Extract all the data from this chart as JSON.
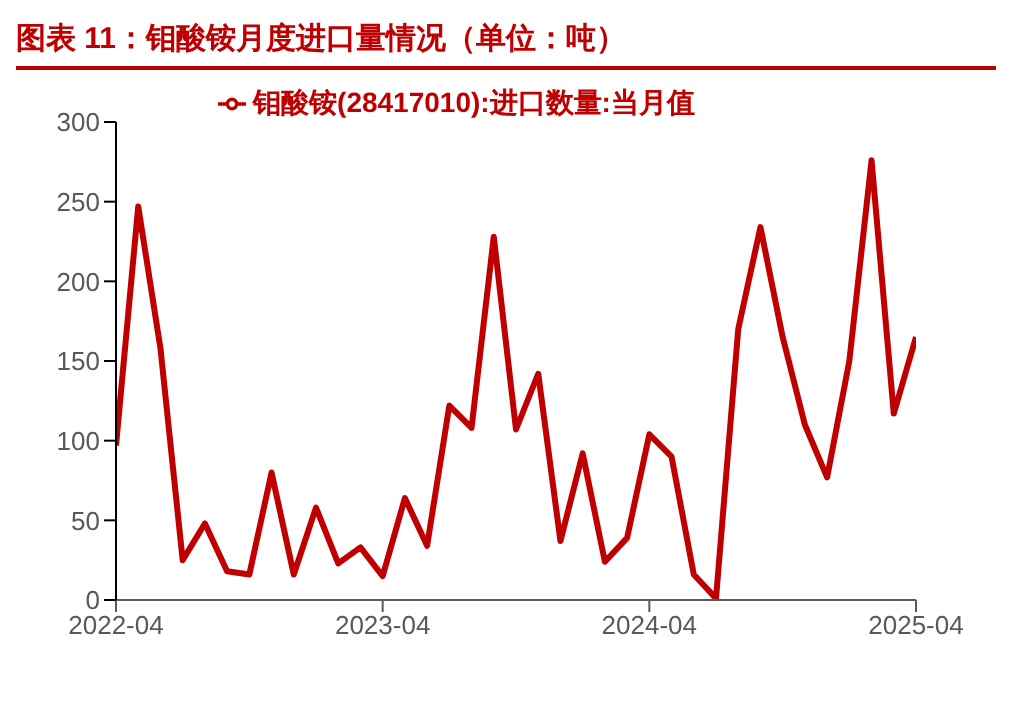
{
  "chart_data": {
    "type": "line",
    "title": "图表 11：钼酸铵月度进口量情况（单位：吨）",
    "x": [
      "2022-04",
      "2022-05",
      "2022-06",
      "2022-07",
      "2022-08",
      "2022-09",
      "2022-10",
      "2022-11",
      "2022-12",
      "2023-01",
      "2023-02",
      "2023-03",
      "2023-04",
      "2023-05",
      "2023-06",
      "2023-07",
      "2023-08",
      "2023-09",
      "2023-10",
      "2023-11",
      "2023-12",
      "2024-01",
      "2024-02",
      "2024-03",
      "2024-04",
      "2024-05",
      "2024-06",
      "2024-07",
      "2024-08",
      "2024-09",
      "2024-10",
      "2024-11",
      "2024-12",
      "2025-01",
      "2025-02",
      "2025-03",
      "2025-04"
    ],
    "series": [
      {
        "name": "钼酸铵(28417010):进口数量:当月值",
        "color": "#c00000",
        "values": [
          97,
          247,
          158,
          25,
          48,
          18,
          16,
          80,
          16,
          58,
          23,
          33,
          15,
          64,
          34,
          122,
          108,
          228,
          107,
          142,
          37,
          92,
          24,
          39,
          104,
          90,
          16,
          1,
          170,
          234,
          165,
          110,
          77,
          150,
          276,
          117,
          165
        ]
      }
    ],
    "xlim": [
      "2022-04",
      "2025-04"
    ],
    "xticks": [
      "2022-04",
      "2023-04",
      "2024-04",
      "2025-04"
    ],
    "ylim": [
      0,
      300
    ],
    "yticks": [
      0,
      50,
      100,
      150,
      200,
      250,
      300
    ],
    "legend": "top",
    "grid": false,
    "marker": "none",
    "line_style": "solid"
  }
}
